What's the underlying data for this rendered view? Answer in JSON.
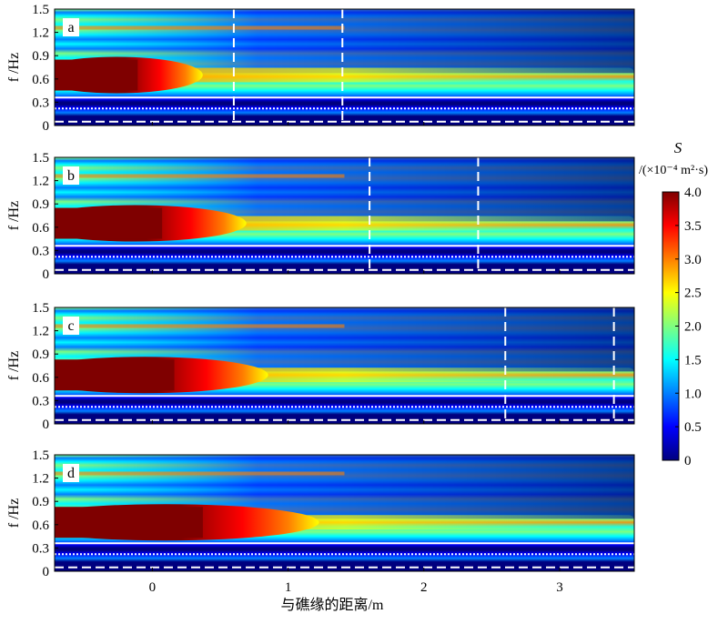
{
  "chart_data": {
    "type": "heatmap",
    "x_unit": "m",
    "y_unit": "Hz",
    "xlabel": "与礁缘的距离/m",
    "ylabel": "f /Hz",
    "x_ticks": [
      0,
      1,
      2,
      3
    ],
    "y_ticks": [
      "0",
      "0.3",
      "0.6",
      "0.9",
      "1.2",
      "1.5"
    ],
    "xlim": [
      -0.72,
      3.55
    ],
    "ylim": [
      0,
      1.5
    ],
    "colorbar": {
      "title": "S",
      "unit": "/(×10⁻⁴ m²·s)",
      "ticks": [
        "0",
        "0.5",
        "1.0",
        "1.5",
        "2.0",
        "2.5",
        "3.0",
        "3.5",
        "4.0"
      ],
      "range": [
        0,
        4.0
      ],
      "colormap": [
        "#00007f",
        "#0000ff",
        "#007fff",
        "#00ffff",
        "#7fff7f",
        "#ffff00",
        "#ff7f00",
        "#ff0000",
        "#7f0000"
      ]
    },
    "panels": [
      {
        "label": "a",
        "peak_frequency_hz": 0.65,
        "high_energy_extent_m": 0.3,
        "marker_lines_m": [
          0.6,
          1.4
        ],
        "reference_lines_hz": {
          "solid": 0.36,
          "dotted": 0.22,
          "dashed": 0.05
        }
      },
      {
        "label": "b",
        "peak_frequency_hz": 0.65,
        "high_energy_extent_m": 0.6,
        "marker_lines_m": [
          1.6,
          2.4
        ],
        "reference_lines_hz": {
          "solid": 0.36,
          "dotted": 0.22,
          "dashed": 0.05
        }
      },
      {
        "label": "c",
        "peak_frequency_hz": 0.63,
        "high_energy_extent_m": 0.75,
        "marker_lines_m": [
          2.6,
          3.4
        ],
        "reference_lines_hz": {
          "solid": 0.36,
          "dotted": 0.22,
          "dashed": 0.05
        }
      },
      {
        "label": "d",
        "peak_frequency_hz": 0.63,
        "high_energy_extent_m": 1.1,
        "marker_lines_m": [],
        "reference_lines_hz": {
          "solid": 0.36,
          "dotted": 0.22,
          "dashed": 0.05
        }
      }
    ]
  }
}
